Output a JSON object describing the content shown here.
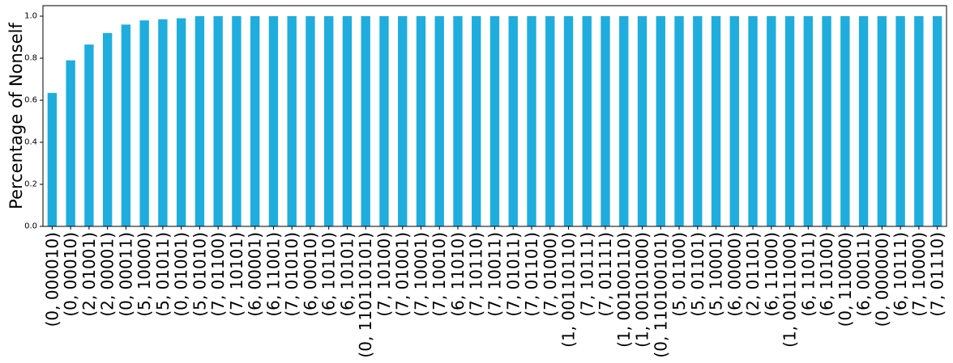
{
  "chart_data": {
    "type": "bar",
    "ylabel": "Percentage of Nonself",
    "xlabel": "",
    "title": "",
    "ylim": [
      0,
      1.05
    ],
    "yticks": [
      "0.0",
      "0.2",
      "0.4",
      "0.6",
      "0.8",
      "1.0"
    ],
    "bar_color": "#1fadde",
    "grid": false,
    "categories": [
      "(0, 000010)",
      "(0, 00010)",
      "(2, 01001)",
      "(2, 00001)",
      "(0, 00011)",
      "(5, 10000)",
      "(5, 01011)",
      "(0, 01001)",
      "(5, 01010)",
      "(7, 01100)",
      "(7, 10101)",
      "(6, 00001)",
      "(6, 11001)",
      "(7, 01010)",
      "(6, 00010)",
      "(6, 10110)",
      "(6, 10101)",
      "(0, 110110101)",
      "(7, 10100)",
      "(7, 01001)",
      "(7, 10001)",
      "(7, 10010)",
      "(6, 11010)",
      "(7, 10110)",
      "(7, 10011)",
      "(7, 01011)",
      "(7, 01101)",
      "(7, 01000)",
      "(1, 00110110)",
      "(7, 10111)",
      "(7, 01111)",
      "(1, 00100110)",
      "(1, 00101000)",
      "(0, 110100101)",
      "(5, 01100)",
      "(5, 01101)",
      "(5, 10001)",
      "(6, 00000)",
      "(2, 01101)",
      "(6, 11000)",
      "(1, 00111000)",
      "(6, 11011)",
      "(6, 10100)",
      "(0, 110000)",
      "(6, 00011)",
      "(0, 000000)",
      "(6, 10111)",
      "(7, 10000)",
      "(7, 01110)"
    ],
    "values": [
      0.635,
      0.79,
      0.865,
      0.92,
      0.96,
      0.98,
      0.985,
      0.99,
      1.0,
      1.0,
      1.0,
      1.0,
      1.0,
      1.0,
      1.0,
      1.0,
      1.0,
      1.0,
      1.0,
      1.0,
      1.0,
      1.0,
      1.0,
      1.0,
      1.0,
      1.0,
      1.0,
      1.0,
      1.0,
      1.0,
      1.0,
      1.0,
      1.0,
      1.0,
      1.0,
      1.0,
      1.0,
      1.0,
      1.0,
      1.0,
      1.0,
      1.0,
      1.0,
      1.0,
      1.0,
      1.0,
      1.0,
      1.0,
      1.0
    ]
  }
}
